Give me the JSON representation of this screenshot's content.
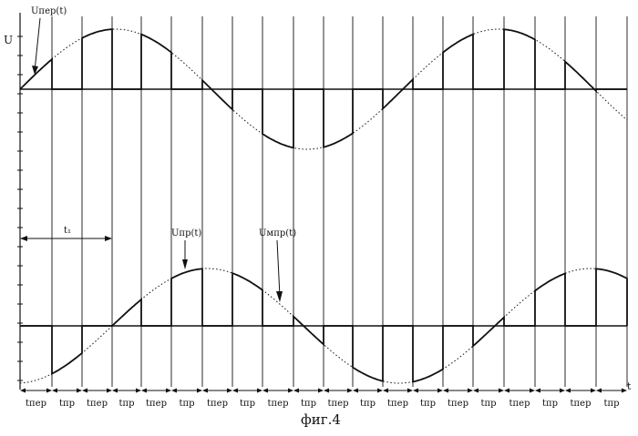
{
  "figure": {
    "axis_label_u": "U",
    "axis_label_t": "t",
    "caption": "фиг.4",
    "label_u_per": "Uпер(t)",
    "label_u_pr": "Uпр(t)",
    "label_u_mpr": "Uмпр(t)",
    "label_t1": "t₁",
    "interval_labels": [
      "tпер",
      "tпр",
      "tпер",
      "tпр",
      "tпер",
      "tпр",
      "tпер",
      "tпр",
      "tпер",
      "tпр",
      "tпер",
      "tпр",
      "tпер",
      "tпр",
      "tпер",
      "tпр",
      "tпер",
      "tпр",
      "tпер",
      "tпр"
    ]
  },
  "colors": {
    "ink": "#111111"
  }
}
